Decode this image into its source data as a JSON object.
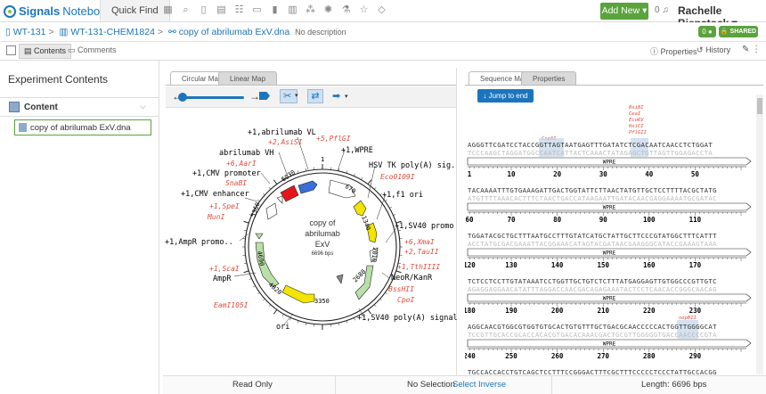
{
  "app": {
    "logo_brand": "Signals",
    "logo_product": "Notebook",
    "quick_find": "Quick Find",
    "add_new": "Add New ▾",
    "notif_count": "0",
    "user_name": "Rachelle Bienstock ▾",
    "toolbar_icons": [
      "grid-icon",
      "search-icon",
      "document-icon",
      "table-icon",
      "list-icon",
      "chat-icon",
      "clipboard-icon",
      "text-icon",
      "molecule-icon",
      "atom-icon",
      "flask-icon",
      "star-icon",
      "cube-icon"
    ]
  },
  "breadcrumb": {
    "item1": "WT-131",
    "item2": "WT-131-CHEM1824",
    "item3": "copy of abrilumab ExV.dna",
    "no_desc": "No description",
    "comment_count": "0",
    "shared": "SHARED"
  },
  "tabbar": {
    "contents": "Contents",
    "comments": "Comments",
    "properties": "Properties",
    "history": "History"
  },
  "left": {
    "title": "Experiment Contents",
    "section": "Content",
    "file": "copy of abrilumab ExV.dna"
  },
  "map": {
    "tab_circular": "Circular Map",
    "tab_linear": "Linear Map",
    "center_name_1": "copy of",
    "center_name_2": "abrilumab",
    "center_name_3": "ExV",
    "center_bp": "6696 bps",
    "ticks": [
      "1",
      "670",
      "1340",
      "2010",
      "2680",
      "3350",
      "4020",
      "4690",
      "5360",
      "6030"
    ],
    "features": [
      "+1,abrilumab VL",
      "abrilumab VH",
      "+1,CMV promoter",
      "+1,CMV enhancer",
      "+1,AmpR promo..",
      "AmpR",
      "ori",
      "+1,WPRE",
      "HSV TK poly(A) sig..",
      "+1,f1 ori",
      "+1,SV40 promo",
      "NeoR/KanR",
      "+1,SV40 poly(A) signal"
    ],
    "enzymes": [
      "+2,AsiSI",
      "+6,AarI",
      "SnaBI",
      "+1,SpeI",
      "MunI",
      "+1,ScaI",
      "EamI105I",
      "+5,PflGI",
      "Eco0109I",
      "+6,XmaI",
      "+2,TauII",
      "+1,TthIIII",
      "BssHII",
      "CpoI"
    ]
  },
  "seq": {
    "tab_seqmap": "Sequence Map",
    "tab_properties": "Properties",
    "jump": "Jump to end",
    "top_enzymes": [
      "BsiBI",
      "CeaI",
      "EcoRV",
      "HsiCI",
      "PflGII"
    ],
    "block1_enzyme": "CspAI",
    "block5_enzyme": "nopBII",
    "feature": "WPRE",
    "rows": [
      {
        "top": "AGGGTTCGATCCTACCGGTTAGTAATGAGTTTGATATCTCGACAATCAACCTCTGGAT",
        "bot": "TCCCAAGCTAGGATGGCCAATCATTACTCAAACTATAGAGCTGTTAGTTGGAGACCTA",
        "ruler": [
          "1",
          "10",
          "20",
          "30",
          "40",
          "50"
        ]
      },
      {
        "top": "TACAAAATTTGTGAAAGATTGACTGGTATTCTTAACTATGTTGCTCCTTTTACGCTATG",
        "bot": "ATGTTTTAAACACTTTCTAACTGACCATAAGAATTGATACAACGAGGAAAATGCGATAC",
        "ruler": [
          "60",
          "70",
          "80",
          "90",
          "100",
          "110"
        ]
      },
      {
        "top": "TGGATACGCTGCTTTAATGCCTTTGTATCATGCTATTGCTTCCCGTATGGCTTTCATTT",
        "bot": "ACCTATGCGACGAAATTACGGAAACATAGTACGATAACGAAGGGCATACCGAAAGTAAA",
        "ruler": [
          "120",
          "130",
          "140",
          "150",
          "160",
          "170"
        ]
      },
      {
        "top": "TCTCCTCCTTGTATAAATCCTGGTTGCTGTCTCTTTATGAGGAGTTGTGGCCCGTTGTC",
        "bot": "AGAGGAGGAACATATTTAGGACCAACGACAGAGAAATACTCCTCAACACCGGGCAACAG",
        "ruler": [
          "180",
          "190",
          "200",
          "210",
          "220",
          "230"
        ]
      },
      {
        "top": "AGGCAACGTGGCGTGGTGTGCACTGTGTTTGCTGACGCAACCCCCACTGGTTGGGGCAT",
        "bot": "TCCGTTGCACCGCACCACACGTGACACAAACGACTGCGTTGGGGGTGACCAACCCCGTA",
        "ruler": [
          "240",
          "250",
          "260",
          "270",
          "280",
          "290"
        ]
      },
      {
        "top": "TGCCACCACCTGTCAGCTCCTTTCCGGGACTTTCGCTTTCCCCCTCCCTATTGCCACGG",
        "bot": "ACGGTGGTGGACAGTCGAGGAAAGGCCCTGAAAGCGAAAGGGGGAGGGATAACGGTGCC",
        "ruler": []
      }
    ]
  },
  "status": {
    "readonly": "Read Only",
    "selection": "No Selection",
    "select_inverse": "Select Inverse",
    "length": "Length: 6696 bps"
  },
  "colors": {
    "brand_blue": "#1c75bc",
    "brand_green": "#5aa33d",
    "enzyme_red": "#e04b3a",
    "feature_yellow": "#f2e500",
    "feature_green": "#b8e0a8",
    "feature_red": "#e3171b",
    "feature_blue": "#3a6fd8"
  }
}
